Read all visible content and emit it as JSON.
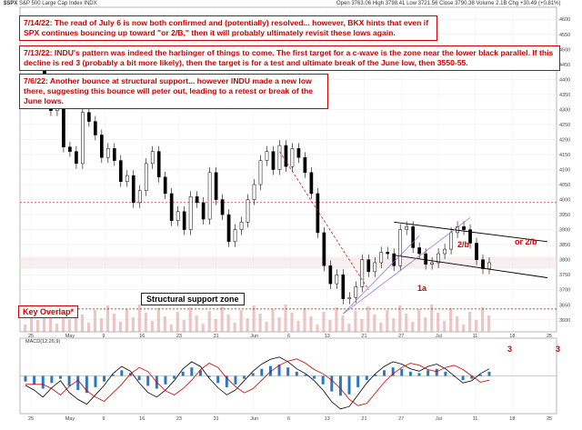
{
  "header": {
    "symbol": "$SPX",
    "name": "S&P 500 Large Cap Index",
    "exchange": "INDX",
    "ohlc": "Open 3763.06  High 3798.41  Low 3721.56  Close 3790.38  Volume 2.1B  Chg +30.49 (+0.81%)"
  },
  "notes": [
    "7/14/22:  The read of July 6 is now both confirmed and (potentially) resolved... however, BKX hints that even if SPX continues bouncing up toward \"or 2/B,\" then it will probably ultimately revisit these lows again.",
    "7/13/22:  INDU's pattern was indeed the harbinger of things to come.  The first target for a c-wave is the zone near the lower black parallel.  If this decline is red 3 (probably a bit more likely), then the target is for a test and ultimate break of the June low, then 3550-55.",
    "7/6/22:  Another bounce at structural support... however INDU made a new low there, suggesting this bounce will peter out, leading to a retest or break of the June lows."
  ],
  "labels": {
    "structural_support": "Structural support zone",
    "key_overlap": "Key Overlap*",
    "wave_2b": "2/b",
    "or_2b": "or 2/b",
    "wave_1a": "1a",
    "three_main": "3",
    "three_right": "3",
    "macd_header": "MACD(12,26,9)"
  },
  "chart_data": {
    "type": "line",
    "title": "",
    "price_axis": [
      4600,
      4550,
      4500,
      4450,
      4400,
      4350,
      4300,
      4250,
      4200,
      4150,
      4100,
      4050,
      4000,
      3950,
      3900,
      3850,
      3800,
      3750,
      3700,
      3650,
      3600
    ],
    "x_ticks": [
      "25",
      "May",
      "9",
      "16",
      "23",
      "31",
      "Jun",
      "6",
      "13",
      "21",
      "27",
      "Jul",
      "11",
      "18",
      "25"
    ],
    "series": [
      {
        "values": [
          4470,
          4495,
          4455,
          4380,
          4296,
          4310,
          4175,
          4160,
          4120,
          4290,
          4260,
          4215,
          4140,
          4170,
          4130,
          4060,
          4080,
          3990,
          4030,
          4120,
          4160,
          4075,
          4020,
          3930,
          3960,
          3900,
          4010,
          3990,
          3935,
          4090,
          4000,
          3950,
          3860,
          3900,
          3925,
          4000,
          4050,
          4130,
          4160,
          4100,
          4180,
          4110,
          4170,
          4140,
          4090,
          4020,
          3890,
          3780,
          3720,
          3750,
          3670,
          3674,
          3710,
          3800,
          3760,
          3790,
          3825,
          3820,
          3780,
          3900,
          3910,
          3840,
          3820,
          3785,
          3790,
          3820,
          3835,
          3890,
          3910,
          3900,
          3855,
          3800,
          3770,
          3790
        ]
      }
    ],
    "macd": [
      -20,
      -30,
      -45,
      -25,
      -10,
      -35,
      -50,
      -60,
      -40,
      -20,
      5,
      20,
      10,
      -15,
      -35,
      -45,
      -30,
      -10,
      15,
      30,
      20,
      -5,
      -25,
      -40,
      -30,
      -10,
      10,
      25,
      35,
      40,
      30,
      15,
      5,
      -10,
      -30,
      -55,
      -70,
      -65,
      -40,
      -15,
      5,
      20,
      30,
      25,
      15,
      10,
      20,
      25,
      15,
      0,
      -15,
      -10,
      5,
      15
    ]
  }
}
